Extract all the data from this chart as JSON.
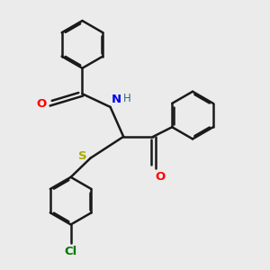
{
  "background_color": "#ebebeb",
  "bond_color": "#1a1a1a",
  "bond_width": 1.8,
  "dbo": 0.055,
  "atom_colors": {
    "O": "#ff0000",
    "N": "#0000ee",
    "S": "#aaaa00",
    "Cl": "#007700",
    "H": "#2a6a7a"
  },
  "font_size": 9.5
}
